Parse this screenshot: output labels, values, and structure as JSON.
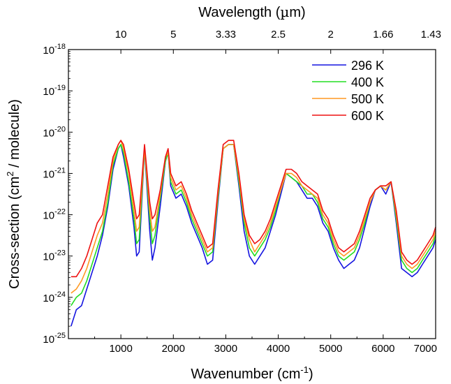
{
  "chart_data": {
    "type": "line",
    "xlabel": "Wavenumber (cm",
    "xlabel_sup": "-1",
    "xlabel_end": ")",
    "ylabel": "Cross-section (cm",
    "ylabel_sup": "2",
    "ylabel_end": " / molecule)",
    "top_axis_label": "Wavelength (",
    "top_axis_mu": "µ",
    "top_axis_unit_end": "m)",
    "xlim": [
      0,
      7000
    ],
    "ylim": [
      1e-25,
      1e-18
    ],
    "y_scale": "log",
    "grid": false,
    "legend_position": "top-right",
    "x_ticks": [
      1000,
      2000,
      3000,
      4000,
      5000,
      6000,
      7000
    ],
    "x_tick_labels": [
      "1000",
      "2000",
      "3000",
      "4000",
      "5000",
      "6000",
      "7000"
    ],
    "y_ticks": [
      {
        "base": "10",
        "exp": "-18",
        "value": 1e-18
      },
      {
        "base": "10",
        "exp": "-19",
        "value": 1e-19
      },
      {
        "base": "10",
        "exp": "-20",
        "value": 1e-20
      },
      {
        "base": "10",
        "exp": "-21",
        "value": 1e-21
      },
      {
        "base": "10",
        "exp": "-22",
        "value": 1e-22
      },
      {
        "base": "10",
        "exp": "-23",
        "value": 1e-23
      },
      {
        "base": "10",
        "exp": "-24",
        "value": 1e-24
      },
      {
        "base": "10",
        "exp": "-25",
        "value": 1e-25
      }
    ],
    "top_ticks": [
      {
        "label": "10",
        "wavenumber": 1000
      },
      {
        "label": "5",
        "wavenumber": 2000
      },
      {
        "label": "3.33",
        "wavenumber": 3000
      },
      {
        "label": "2.5",
        "wavenumber": 4000
      },
      {
        "label": "2",
        "wavenumber": 5000
      },
      {
        "label": "1.66",
        "wavenumber": 6000
      },
      {
        "label": "1.43",
        "wavenumber": 7000
      }
    ],
    "x": [
      50,
      150,
      250,
      350,
      450,
      550,
      650,
      750,
      850,
      950,
      1000,
      1050,
      1150,
      1250,
      1300,
      1350,
      1450,
      1550,
      1600,
      1650,
      1750,
      1850,
      1900,
      1950,
      2050,
      2150,
      2250,
      2350,
      2450,
      2550,
      2650,
      2750,
      2850,
      2950,
      3050,
      3150,
      3250,
      3350,
      3450,
      3550,
      3650,
      3750,
      3850,
      3950,
      4050,
      4150,
      4250,
      4350,
      4450,
      4550,
      4650,
      4750,
      4850,
      4950,
      5050,
      5150,
      5250,
      5350,
      5450,
      5550,
      5650,
      5750,
      5850,
      5950,
      6050,
      6150,
      6250,
      6350,
      6450,
      6550,
      6650,
      6750,
      6850,
      6950,
      7000
    ],
    "series": [
      {
        "name": "296 K",
        "color": "#1515e0",
        "values": [
          -24.7,
          -24.3,
          -24.2,
          -23.8,
          -23.4,
          -23.0,
          -22.5,
          -21.8,
          -20.9,
          -20.4,
          -20.3,
          -20.6,
          -21.3,
          -22.3,
          -23.0,
          -22.9,
          -20.4,
          -22.4,
          -23.1,
          -22.8,
          -21.8,
          -20.7,
          -20.5,
          -21.3,
          -21.6,
          -21.5,
          -21.8,
          -22.2,
          -22.5,
          -22.8,
          -23.2,
          -23.1,
          -21.7,
          -20.4,
          -20.3,
          -20.3,
          -21.3,
          -22.4,
          -23.0,
          -23.2,
          -23.0,
          -22.8,
          -22.4,
          -22.0,
          -21.5,
          -21.0,
          -21.1,
          -21.2,
          -21.4,
          -21.6,
          -21.6,
          -21.8,
          -22.2,
          -22.4,
          -22.8,
          -23.1,
          -23.3,
          -23.2,
          -23.1,
          -22.8,
          -22.3,
          -21.8,
          -21.4,
          -21.3,
          -21.5,
          -21.2,
          -22.2,
          -23.3,
          -23.4,
          -23.5,
          -23.4,
          -23.2,
          -23.0,
          -22.8,
          -22.6
        ]
      },
      {
        "name": "400 K",
        "color": "#22dd22",
        "values": [
          -24.2,
          -24.0,
          -23.9,
          -23.6,
          -23.2,
          -22.8,
          -22.4,
          -21.7,
          -20.8,
          -20.4,
          -20.3,
          -20.5,
          -21.2,
          -22.1,
          -22.7,
          -22.6,
          -20.4,
          -22.1,
          -22.7,
          -22.5,
          -21.6,
          -20.7,
          -20.5,
          -21.2,
          -21.5,
          -21.4,
          -21.7,
          -22.1,
          -22.4,
          -22.7,
          -23.0,
          -22.9,
          -21.6,
          -20.4,
          -20.3,
          -20.3,
          -21.2,
          -22.2,
          -22.8,
          -23.0,
          -22.8,
          -22.6,
          -22.3,
          -21.9,
          -21.4,
          -21.0,
          -21.1,
          -21.2,
          -21.3,
          -21.5,
          -21.5,
          -21.7,
          -22.1,
          -22.3,
          -22.7,
          -23.0,
          -23.1,
          -23.0,
          -22.9,
          -22.6,
          -22.2,
          -21.7,
          -21.4,
          -21.3,
          -21.4,
          -21.2,
          -22.1,
          -23.1,
          -23.3,
          -23.4,
          -23.3,
          -23.1,
          -22.9,
          -22.7,
          -22.5
        ]
      },
      {
        "name": "500 K",
        "color": "#ff9922",
        "values": [
          -23.9,
          -23.8,
          -23.6,
          -23.3,
          -22.9,
          -22.5,
          -22.2,
          -21.5,
          -20.7,
          -20.3,
          -20.2,
          -20.4,
          -21.0,
          -21.9,
          -22.4,
          -22.3,
          -20.4,
          -21.9,
          -22.4,
          -22.3,
          -21.5,
          -20.6,
          -20.5,
          -21.1,
          -21.4,
          -21.3,
          -21.6,
          -22.0,
          -22.3,
          -22.6,
          -22.9,
          -22.8,
          -21.5,
          -20.4,
          -20.3,
          -20.3,
          -21.1,
          -22.1,
          -22.6,
          -22.9,
          -22.7,
          -22.5,
          -22.2,
          -21.8,
          -21.4,
          -21.0,
          -21.0,
          -21.1,
          -21.3,
          -21.4,
          -21.5,
          -21.6,
          -22.0,
          -22.2,
          -22.6,
          -22.9,
          -23.0,
          -22.9,
          -22.8,
          -22.5,
          -22.1,
          -21.7,
          -21.4,
          -21.3,
          -21.4,
          -21.2,
          -22.0,
          -23.0,
          -23.2,
          -23.3,
          -23.2,
          -23.0,
          -22.8,
          -22.6,
          -22.4
        ]
      },
      {
        "name": "600 K",
        "color": "#ee1111",
        "values": [
          -23.5,
          -23.5,
          -23.3,
          -23.0,
          -22.6,
          -22.2,
          -22.0,
          -21.3,
          -20.6,
          -20.3,
          -20.2,
          -20.3,
          -20.9,
          -21.7,
          -22.1,
          -22.0,
          -20.3,
          -21.7,
          -22.1,
          -22.0,
          -21.4,
          -20.6,
          -20.4,
          -21.0,
          -21.3,
          -21.2,
          -21.5,
          -21.9,
          -22.2,
          -22.5,
          -22.8,
          -22.7,
          -21.4,
          -20.3,
          -20.2,
          -20.2,
          -21.0,
          -22.0,
          -22.5,
          -22.7,
          -22.6,
          -22.4,
          -22.1,
          -21.7,
          -21.3,
          -20.9,
          -20.9,
          -21.0,
          -21.2,
          -21.3,
          -21.4,
          -21.5,
          -21.9,
          -22.1,
          -22.5,
          -22.8,
          -22.9,
          -22.8,
          -22.7,
          -22.4,
          -22.0,
          -21.6,
          -21.4,
          -21.3,
          -21.3,
          -21.2,
          -21.9,
          -22.9,
          -23.1,
          -23.2,
          -23.1,
          -22.9,
          -22.7,
          -22.5,
          -22.3
        ]
      }
    ]
  }
}
